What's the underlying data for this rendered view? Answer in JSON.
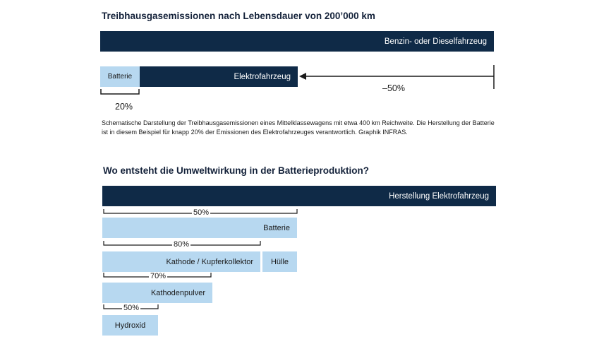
{
  "section1": {
    "title": "Treibhausgasemissionen nach Lebensdauer von 200’000 km",
    "bar_conventional": "Benzin- oder Dieselfahrzeug",
    "bar_battery": "Batterie",
    "bar_electric": "Elektrofahrzeug",
    "reduction_pct": "–50%",
    "battery_share_pct": "20%",
    "caption": "Schematische Darstellung der Treibhausgasemissionen eines Mittelklassewagens mit etwa 400 km Reichweite. Die Herstellung der Batterie ist in diesem Beispiel für knapp 20% der Emissionen des Elektrofahrzeuges verantwortlich. Graphik INFRAS."
  },
  "section2": {
    "title": "Wo entsteht die Umweltwirkung in der Batterieproduktion?",
    "bar_production": "Herstellung Elektrofahrzeug",
    "levels": [
      {
        "pct": "50%",
        "label": "Batterie"
      },
      {
        "pct": "80%",
        "label": "Kathode / Kupferkollektor",
        "sibling": "Hülle"
      },
      {
        "pct": "70%",
        "label": "Kathodenpulver"
      },
      {
        "pct": "50%",
        "label": "Hydroxid"
      }
    ]
  },
  "colors": {
    "dark": "#0f2a47",
    "light": "#b7d8f0"
  }
}
